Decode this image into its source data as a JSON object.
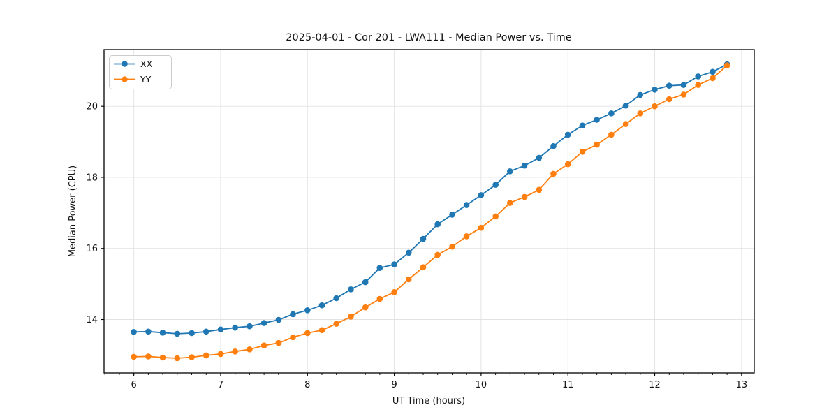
{
  "figure": {
    "background": "#ffffff",
    "spine_color": "#000000",
    "grid_color": "#e2e2e2",
    "text_color": "#141414"
  },
  "legend": {
    "items": [
      {
        "label": "XX",
        "color": "#1f77b4"
      },
      {
        "label": "YY",
        "color": "#ff7f0e"
      }
    ]
  },
  "chart_data": {
    "type": "line",
    "title": "2025-04-01 - Cor 201 - LWA111 - Median Power vs. Time",
    "xlabel": "UT Time (hours)",
    "ylabel": "Median Power (CPU)",
    "xlim": [
      5.657,
      13.146
    ],
    "ylim": [
      12.497,
      21.595
    ],
    "x_major_ticks": [
      6,
      7,
      8,
      9,
      10,
      11,
      12,
      13
    ],
    "x_minor_step": 0.166667,
    "y_major_ticks": [
      14,
      16,
      18,
      20
    ],
    "grid": true,
    "legend_position": "upper-left",
    "marker": "circle",
    "x": [
      6.0,
      6.167,
      6.333,
      6.5,
      6.667,
      6.833,
      7.0,
      7.167,
      7.333,
      7.5,
      7.667,
      7.833,
      8.0,
      8.167,
      8.333,
      8.5,
      8.667,
      8.833,
      9.0,
      9.167,
      9.333,
      9.5,
      9.667,
      9.833,
      10.0,
      10.167,
      10.333,
      10.5,
      10.667,
      10.833,
      11.0,
      11.167,
      11.333,
      11.5,
      11.667,
      11.833,
      12.0,
      12.167,
      12.333,
      12.5,
      12.667,
      12.833
    ],
    "series": [
      {
        "name": "XX",
        "color": "#1f77b4",
        "values": [
          13.65,
          13.66,
          13.63,
          13.6,
          13.62,
          13.66,
          13.72,
          13.77,
          13.81,
          13.9,
          13.99,
          14.15,
          14.26,
          14.4,
          14.6,
          14.85,
          15.05,
          15.45,
          15.55,
          15.88,
          16.27,
          16.68,
          16.95,
          17.22,
          17.5,
          17.79,
          18.17,
          18.33,
          18.55,
          18.88,
          19.2,
          19.46,
          19.62,
          19.8,
          20.02,
          20.32,
          20.47,
          20.58,
          20.6,
          20.84,
          20.97,
          21.18
        ]
      },
      {
        "name": "YY",
        "color": "#ff7f0e",
        "values": [
          12.95,
          12.96,
          12.93,
          12.91,
          12.94,
          12.99,
          13.03,
          13.1,
          13.16,
          13.27,
          13.34,
          13.5,
          13.62,
          13.7,
          13.88,
          14.08,
          14.34,
          14.58,
          14.77,
          15.13,
          15.47,
          15.82,
          16.05,
          16.34,
          16.58,
          16.9,
          17.28,
          17.45,
          17.65,
          18.1,
          18.37,
          18.72,
          18.92,
          19.2,
          19.5,
          19.8,
          20.0,
          20.2,
          20.33,
          20.6,
          20.79,
          21.15
        ]
      }
    ]
  }
}
